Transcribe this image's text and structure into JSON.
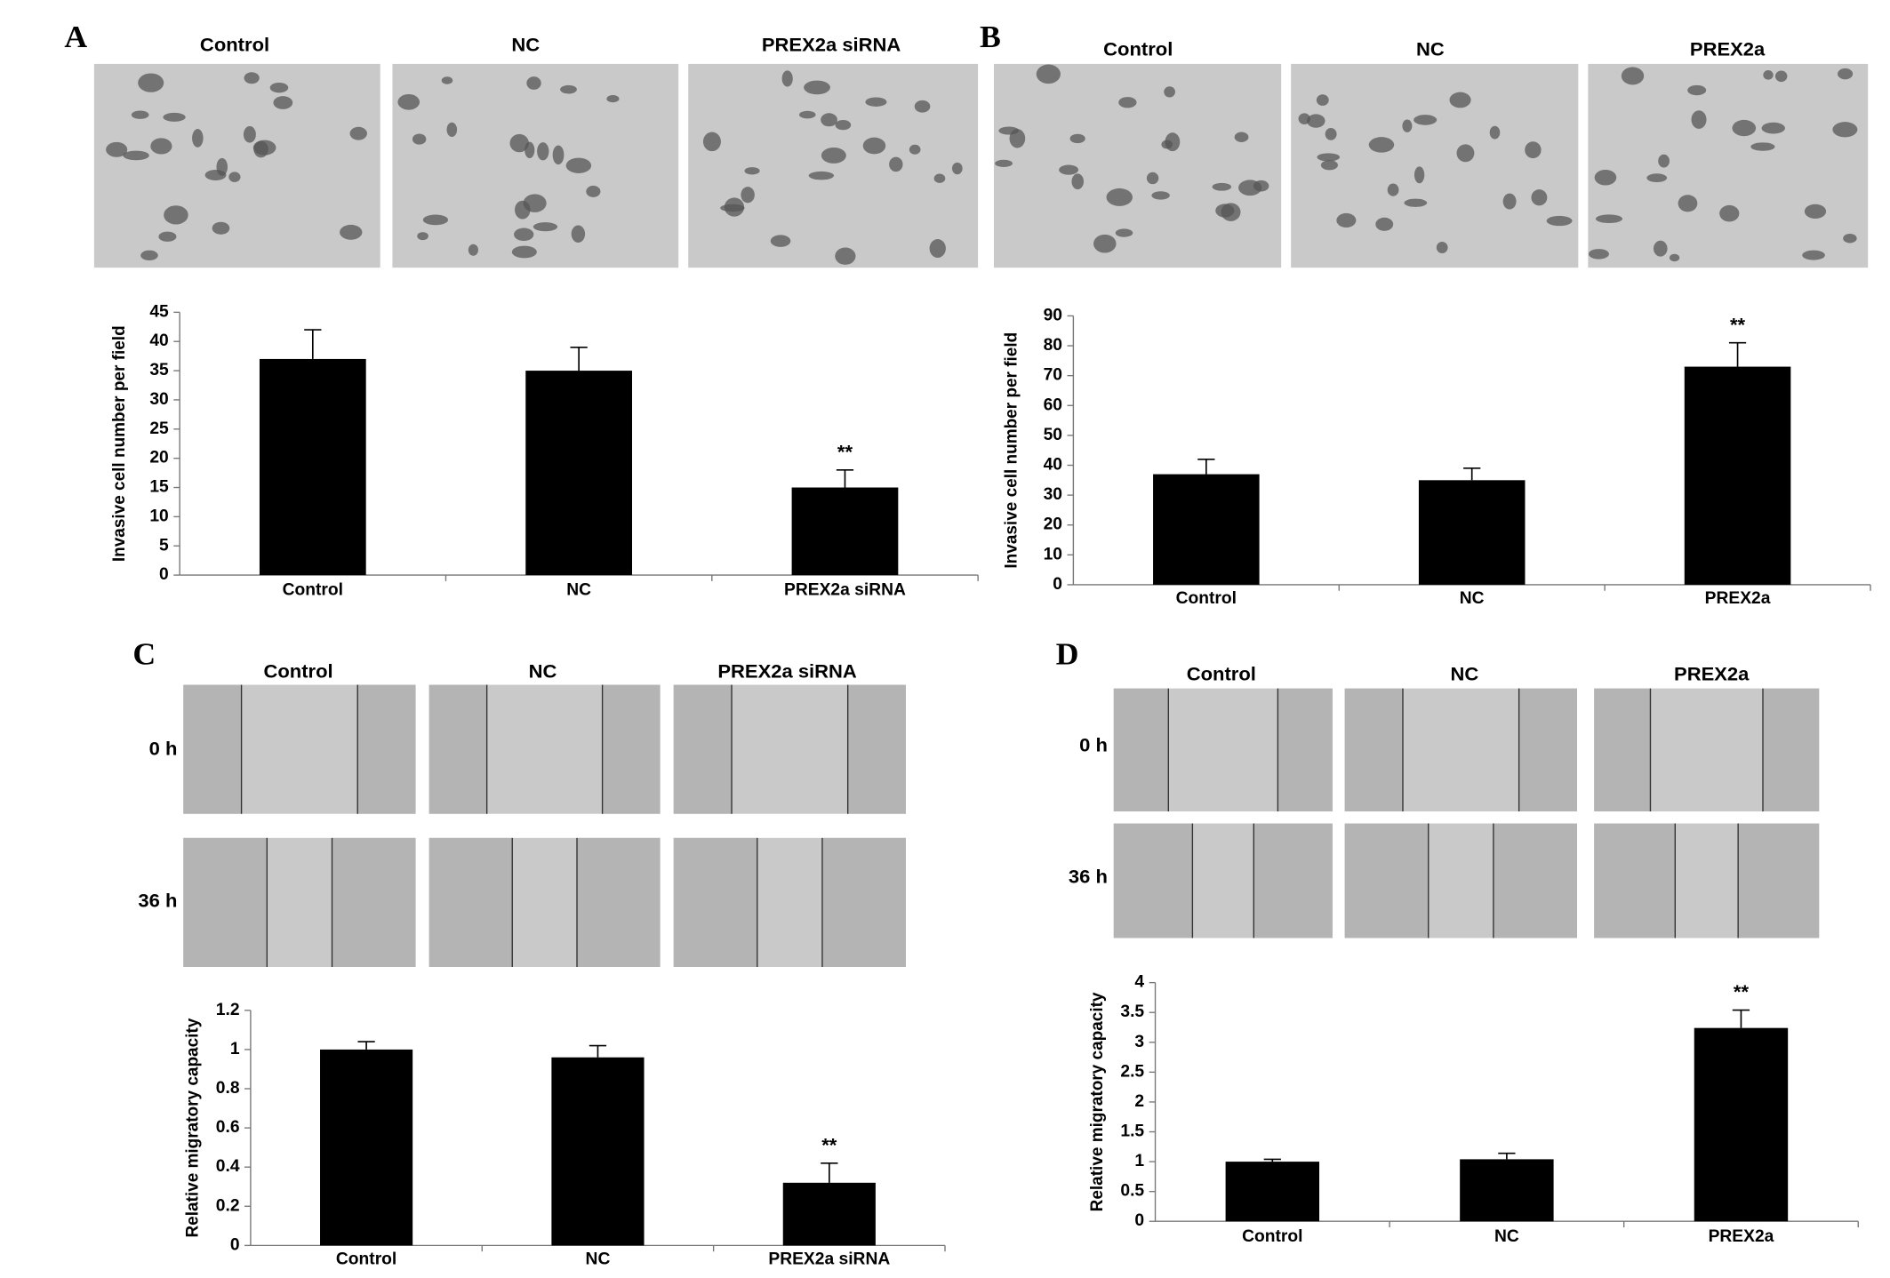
{
  "chart_data": [
    {
      "type": "bar",
      "panel": "A",
      "image_labels": [
        "Control",
        "NC",
        "PREX2a siRNA"
      ],
      "ylabel": "Invasive cell number per field",
      "categories": [
        "Control",
        "NC",
        "PREX2a siRNA"
      ],
      "values": [
        37,
        35,
        15
      ],
      "errors": [
        5,
        4,
        3
      ],
      "significance": [
        null,
        null,
        "**"
      ],
      "color": "#000000",
      "ylim": [
        0,
        45
      ],
      "yticks": [
        0,
        5,
        10,
        15,
        20,
        25,
        30,
        35,
        40,
        45
      ]
    },
    {
      "type": "bar",
      "panel": "B",
      "image_labels": [
        "Control",
        "NC",
        "PREX2a"
      ],
      "ylabel": "Invasive cell number per field",
      "categories": [
        "Control",
        "NC",
        "PREX2a"
      ],
      "values": [
        37,
        35,
        73
      ],
      "errors": [
        5,
        4,
        8
      ],
      "significance": [
        null,
        null,
        "**"
      ],
      "color": "#000000",
      "ylim": [
        0,
        90
      ],
      "yticks": [
        0,
        10,
        20,
        30,
        40,
        50,
        60,
        70,
        80,
        90
      ]
    },
    {
      "type": "bar",
      "panel": "C",
      "image_labels": [
        "Control",
        "NC",
        "PREX2a siRNA"
      ],
      "row_labels": [
        "0 h",
        "36 h"
      ],
      "ylabel": "Relative migratory capacity",
      "categories": [
        "Control",
        "NC",
        "PREX2a siRNA"
      ],
      "values": [
        1.0,
        0.96,
        0.32
      ],
      "errors": [
        0.04,
        0.06,
        0.1
      ],
      "significance": [
        null,
        null,
        "**"
      ],
      "color": "#000000",
      "ylim": [
        0,
        1.2
      ],
      "yticks": [
        0,
        0.2,
        0.4,
        0.6,
        0.8,
        1,
        1.2
      ]
    },
    {
      "type": "bar",
      "panel": "D",
      "image_labels": [
        "Control",
        "NC",
        "PREX2a"
      ],
      "row_labels": [
        "0 h",
        "36 h"
      ],
      "ylabel": "Relative migratory capacity",
      "categories": [
        "Control",
        "NC",
        "PREX2a"
      ],
      "values": [
        1.0,
        1.04,
        3.24
      ],
      "errors": [
        0.04,
        0.1,
        0.3
      ],
      "significance": [
        null,
        null,
        "**"
      ],
      "color": "#000000",
      "ylim": [
        0,
        4
      ],
      "yticks": [
        0,
        0.5,
        1,
        1.5,
        2,
        2.5,
        3,
        3.5,
        4
      ]
    }
  ]
}
